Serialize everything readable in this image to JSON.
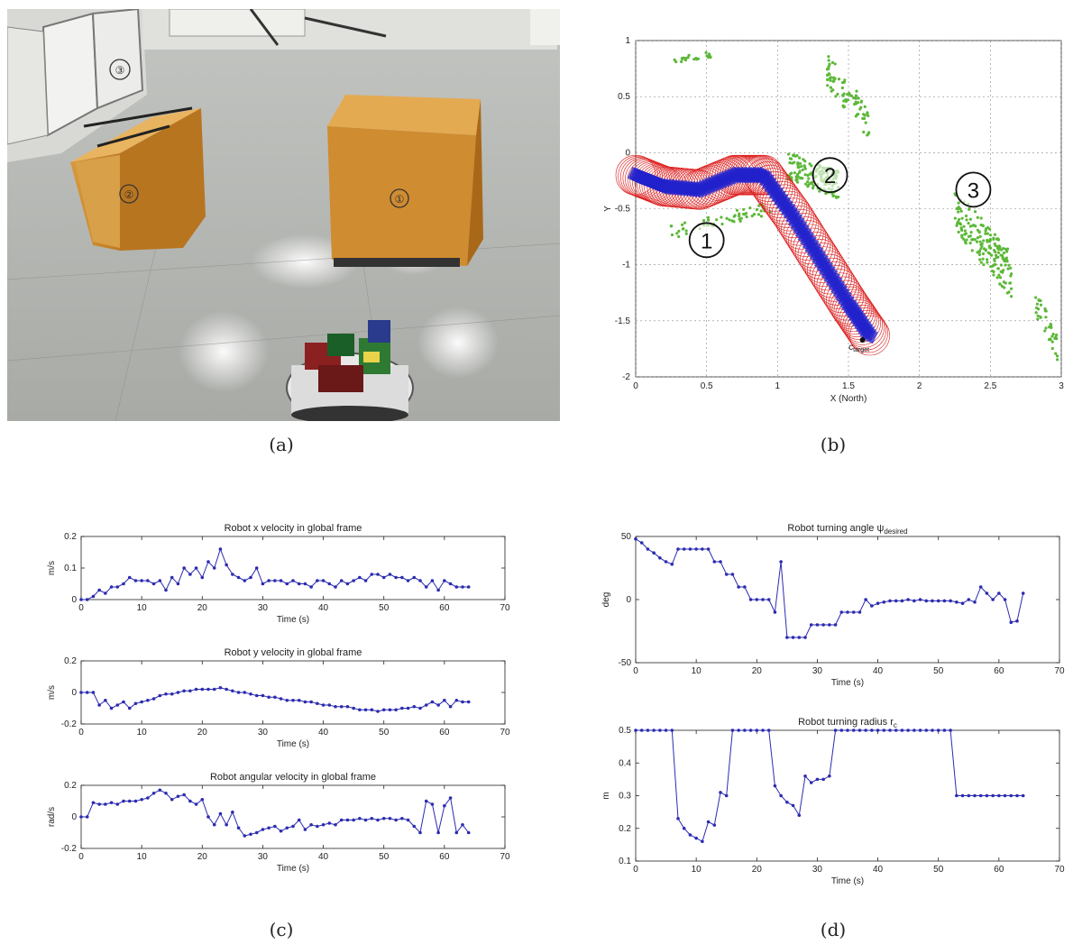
{
  "captions": {
    "a": "(a)",
    "b": "(b)",
    "c": "(c)",
    "d": "(d)"
  },
  "photo": {
    "box_labels": [
      "①",
      "②",
      "③"
    ],
    "colors": {
      "floor": "#c9cbc8",
      "box": "#c8892e",
      "box_top": "#e3ad5a",
      "cabinet": "#e8e8e6"
    }
  },
  "chart_data": [
    {
      "id": "b",
      "type": "scatter",
      "title": "",
      "xlabel": "X (North)",
      "ylabel": "Y",
      "xlim": [
        0,
        3
      ],
      "ylim": [
        -2,
        1
      ],
      "xticks": [
        "0",
        "0.5",
        "1",
        "1.5",
        "2",
        "2.5",
        "3"
      ],
      "yticks": [
        "1",
        "0.5",
        "0",
        "-0.5",
        "-1",
        "-1.5",
        "-2"
      ],
      "grid": true,
      "annotations": [
        "1",
        "2",
        "3",
        "c"
      ],
      "target_sublabel": "target",
      "series": [
        {
          "name": "",
          "color": "#5cb838",
          "role": "obstacle points"
        },
        {
          "name": "",
          "color": "#dd2222",
          "role": "safety circles"
        },
        {
          "name": "",
          "color": "#2222cc",
          "role": "robot path"
        }
      ],
      "obstacles": [
        {
          "cx": 0.6,
          "cy": -0.6,
          "n": 60,
          "spread_x": 0.35,
          "spread_y": 0.12,
          "slope": 0.3
        },
        {
          "cx": 1.25,
          "cy": -0.2,
          "n": 140,
          "spread_x": 0.18,
          "spread_y": 0.25,
          "slope": -0.5
        },
        {
          "cx": 2.45,
          "cy": -0.8,
          "n": 180,
          "spread_x": 0.2,
          "spread_y": 0.4,
          "slope": -1.5
        },
        {
          "cx": 1.5,
          "cy": 0.5,
          "n": 80,
          "spread_x": 0.15,
          "spread_y": 0.3,
          "slope": -1.6
        },
        {
          "cx": 0.4,
          "cy": 0.85,
          "n": 20,
          "spread_x": 0.15,
          "spread_y": 0.05,
          "slope": 0.2
        },
        {
          "cx": 2.9,
          "cy": -1.55,
          "n": 40,
          "spread_x": 0.08,
          "spread_y": 0.25,
          "slope": -2.5
        }
      ],
      "path": [
        {
          "x": 0.0,
          "y": -0.2
        },
        {
          "x": 0.2,
          "y": -0.3
        },
        {
          "x": 0.45,
          "y": -0.33
        },
        {
          "x": 0.7,
          "y": -0.2
        },
        {
          "x": 0.9,
          "y": -0.2
        },
        {
          "x": 1.1,
          "y": -0.55
        },
        {
          "x": 1.3,
          "y": -0.95
        },
        {
          "x": 1.5,
          "y": -1.35
        },
        {
          "x": 1.65,
          "y": -1.63
        }
      ]
    },
    {
      "id": "c1",
      "type": "line",
      "title": "Robot x velocity in global frame",
      "xlabel": "Time (s)",
      "ylabel": "m/s",
      "xlim": [
        0,
        70
      ],
      "ylim": [
        0,
        0.2
      ],
      "xticks": [
        "0",
        "10",
        "20",
        "30",
        "40",
        "50",
        "60",
        "70"
      ],
      "yticks": [
        "0.2",
        "0.1",
        "0"
      ],
      "color": "#2b2bb0",
      "x": [
        0,
        1,
        2,
        3,
        4,
        5,
        6,
        7,
        8,
        9,
        10,
        11,
        12,
        13,
        14,
        15,
        16,
        17,
        18,
        19,
        20,
        21,
        22,
        23,
        24,
        25,
        26,
        27,
        28,
        29,
        30,
        31,
        32,
        33,
        34,
        35,
        36,
        37,
        38,
        39,
        40,
        41,
        42,
        43,
        44,
        45,
        46,
        47,
        48,
        49,
        50,
        51,
        52,
        53,
        54,
        55,
        56,
        57,
        58,
        59,
        60,
        61,
        62,
        63,
        64
      ],
      "y": [
        0.0,
        0.0,
        0.01,
        0.03,
        0.02,
        0.04,
        0.04,
        0.05,
        0.07,
        0.06,
        0.06,
        0.06,
        0.05,
        0.06,
        0.03,
        0.07,
        0.05,
        0.1,
        0.08,
        0.1,
        0.07,
        0.12,
        0.1,
        0.16,
        0.11,
        0.08,
        0.07,
        0.06,
        0.07,
        0.1,
        0.05,
        0.06,
        0.06,
        0.06,
        0.05,
        0.06,
        0.05,
        0.05,
        0.04,
        0.06,
        0.06,
        0.05,
        0.04,
        0.06,
        0.05,
        0.06,
        0.07,
        0.06,
        0.08,
        0.08,
        0.07,
        0.08,
        0.07,
        0.07,
        0.06,
        0.07,
        0.06,
        0.04,
        0.06,
        0.03,
        0.06,
        0.05,
        0.04,
        0.04,
        0.04
      ]
    },
    {
      "id": "c2",
      "type": "line",
      "title": "Robot y velocity in global frame",
      "xlabel": "Time (s)",
      "ylabel": "m/s",
      "xlim": [
        0,
        70
      ],
      "ylim": [
        -0.2,
        0.2
      ],
      "xticks": [
        "0",
        "10",
        "20",
        "30",
        "40",
        "50",
        "60",
        "70"
      ],
      "yticks": [
        "0.2",
        "0",
        "-0.2"
      ],
      "color": "#2b2bb0",
      "x": [
        0,
        1,
        2,
        3,
        4,
        5,
        6,
        7,
        8,
        9,
        10,
        11,
        12,
        13,
        14,
        15,
        16,
        17,
        18,
        19,
        20,
        21,
        22,
        23,
        24,
        25,
        26,
        27,
        28,
        29,
        30,
        31,
        32,
        33,
        34,
        35,
        36,
        37,
        38,
        39,
        40,
        41,
        42,
        43,
        44,
        45,
        46,
        47,
        48,
        49,
        50,
        51,
        52,
        53,
        54,
        55,
        56,
        57,
        58,
        59,
        60,
        61,
        62,
        63,
        64
      ],
      "y": [
        0.0,
        0.0,
        0.0,
        -0.08,
        -0.05,
        -0.1,
        -0.08,
        -0.06,
        -0.1,
        -0.07,
        -0.06,
        -0.05,
        -0.04,
        -0.02,
        -0.01,
        -0.01,
        0.0,
        0.01,
        0.01,
        0.02,
        0.02,
        0.02,
        0.02,
        0.03,
        0.02,
        0.01,
        0.0,
        0.0,
        -0.01,
        -0.02,
        -0.02,
        -0.03,
        -0.03,
        -0.04,
        -0.05,
        -0.05,
        -0.05,
        -0.06,
        -0.06,
        -0.07,
        -0.08,
        -0.08,
        -0.09,
        -0.09,
        -0.09,
        -0.1,
        -0.11,
        -0.11,
        -0.11,
        -0.12,
        -0.11,
        -0.11,
        -0.11,
        -0.1,
        -0.1,
        -0.09,
        -0.1,
        -0.08,
        -0.06,
        -0.08,
        -0.05,
        -0.09,
        -0.05,
        -0.06,
        -0.06
      ]
    },
    {
      "id": "c3",
      "type": "line",
      "title": "Robot angular velocity in global frame",
      "xlabel": "Time (s)",
      "ylabel": "rad/s",
      "xlim": [
        0,
        70
      ],
      "ylim": [
        -0.2,
        0.2
      ],
      "xticks": [
        "0",
        "10",
        "20",
        "30",
        "40",
        "50",
        "60",
        "70"
      ],
      "yticks": [
        "0.2",
        "0",
        "-0.2"
      ],
      "color": "#2b2bb0",
      "x": [
        0,
        1,
        2,
        3,
        4,
        5,
        6,
        7,
        8,
        9,
        10,
        11,
        12,
        13,
        14,
        15,
        16,
        17,
        18,
        19,
        20,
        21,
        22,
        23,
        24,
        25,
        26,
        27,
        28,
        29,
        30,
        31,
        32,
        33,
        34,
        35,
        36,
        37,
        38,
        39,
        40,
        41,
        42,
        43,
        44,
        45,
        46,
        47,
        48,
        49,
        50,
        51,
        52,
        53,
        54,
        55,
        56,
        57,
        58,
        59,
        60,
        61,
        62,
        63,
        64
      ],
      "y": [
        0.0,
        0.0,
        0.09,
        0.08,
        0.08,
        0.09,
        0.08,
        0.1,
        0.1,
        0.1,
        0.11,
        0.12,
        0.15,
        0.17,
        0.15,
        0.11,
        0.13,
        0.14,
        0.1,
        0.08,
        0.11,
        0.0,
        -0.05,
        0.02,
        -0.05,
        0.03,
        -0.07,
        -0.12,
        -0.11,
        -0.1,
        -0.08,
        -0.07,
        -0.06,
        -0.09,
        -0.07,
        -0.06,
        -0.02,
        -0.08,
        -0.05,
        -0.06,
        -0.05,
        -0.04,
        -0.05,
        -0.02,
        -0.02,
        -0.02,
        -0.01,
        -0.02,
        -0.01,
        -0.02,
        -0.01,
        -0.01,
        -0.02,
        -0.01,
        -0.02,
        -0.06,
        -0.1,
        0.1,
        0.08,
        -0.1,
        0.07,
        0.12,
        -0.1,
        -0.05,
        -0.1
      ]
    },
    {
      "id": "d1",
      "type": "line",
      "title": "Robot turning angle ψ",
      "title_sub": "desired",
      "xlabel": "Time (s)",
      "ylabel": "deg",
      "xlim": [
        0,
        70
      ],
      "ylim": [
        -50,
        50
      ],
      "xticks": [
        "0",
        "10",
        "20",
        "30",
        "40",
        "50",
        "60",
        "70"
      ],
      "yticks": [
        "50",
        "0",
        "-50"
      ],
      "color": "#2b2bb0",
      "x": [
        0,
        1,
        2,
        3,
        4,
        5,
        6,
        7,
        8,
        9,
        10,
        11,
        12,
        13,
        14,
        15,
        16,
        17,
        18,
        19,
        20,
        21,
        22,
        23,
        24,
        25,
        26,
        27,
        28,
        29,
        30,
        31,
        32,
        33,
        34,
        35,
        36,
        37,
        38,
        39,
        40,
        41,
        42,
        43,
        44,
        45,
        46,
        47,
        48,
        49,
        50,
        51,
        52,
        53,
        54,
        55,
        56,
        57,
        58,
        59,
        60,
        61,
        62,
        63,
        64
      ],
      "y": [
        48,
        45,
        40,
        37,
        33,
        30,
        28,
        40,
        40,
        40,
        40,
        40,
        40,
        30,
        30,
        20,
        20,
        10,
        10,
        0,
        0,
        0,
        0,
        -10,
        30,
        -30,
        -30,
        -30,
        -30,
        -20,
        -20,
        -20,
        -20,
        -20,
        -10,
        -10,
        -10,
        -10,
        0,
        -5,
        -3,
        -2,
        -1,
        -1,
        -1,
        0,
        -1,
        0,
        -1,
        -1,
        -1,
        -1,
        -1,
        -2,
        -3,
        0,
        -2,
        10,
        5,
        0,
        5,
        0,
        -18,
        -17,
        5
      ]
    },
    {
      "id": "d2",
      "type": "line",
      "title": "Robot turning radius r",
      "title_sub": "c",
      "xlabel": "Time (s)",
      "ylabel": "m",
      "xlim": [
        0,
        70
      ],
      "ylim": [
        0.1,
        0.5
      ],
      "xticks": [
        "0",
        "10",
        "20",
        "30",
        "40",
        "50",
        "60",
        "70"
      ],
      "yticks": [
        "0.5",
        "0.4",
        "0.3",
        "0.2",
        "0.1"
      ],
      "color": "#2b2bb0",
      "x": [
        0,
        1,
        2,
        3,
        4,
        5,
        6,
        7,
        8,
        9,
        10,
        11,
        12,
        13,
        14,
        15,
        16,
        17,
        18,
        19,
        20,
        21,
        22,
        23,
        24,
        25,
        26,
        27,
        28,
        29,
        30,
        31,
        32,
        33,
        34,
        35,
        36,
        37,
        38,
        39,
        40,
        41,
        42,
        43,
        44,
        45,
        46,
        47,
        48,
        49,
        50,
        51,
        52,
        53,
        54,
        55,
        56,
        57,
        58,
        59,
        60,
        61,
        62,
        63,
        64
      ],
      "y": [
        0.5,
        0.5,
        0.5,
        0.5,
        0.5,
        0.5,
        0.5,
        0.23,
        0.2,
        0.18,
        0.17,
        0.16,
        0.22,
        0.21,
        0.31,
        0.3,
        0.5,
        0.5,
        0.5,
        0.5,
        0.5,
        0.5,
        0.5,
        0.33,
        0.3,
        0.28,
        0.27,
        0.24,
        0.36,
        0.34,
        0.35,
        0.35,
        0.36,
        0.5,
        0.5,
        0.5,
        0.5,
        0.5,
        0.5,
        0.5,
        0.5,
        0.5,
        0.5,
        0.5,
        0.5,
        0.5,
        0.5,
        0.5,
        0.5,
        0.5,
        0.5,
        0.5,
        0.5,
        0.3,
        0.3,
        0.3,
        0.3,
        0.3,
        0.3,
        0.3,
        0.3,
        0.3,
        0.3,
        0.3,
        0.3
      ]
    }
  ]
}
